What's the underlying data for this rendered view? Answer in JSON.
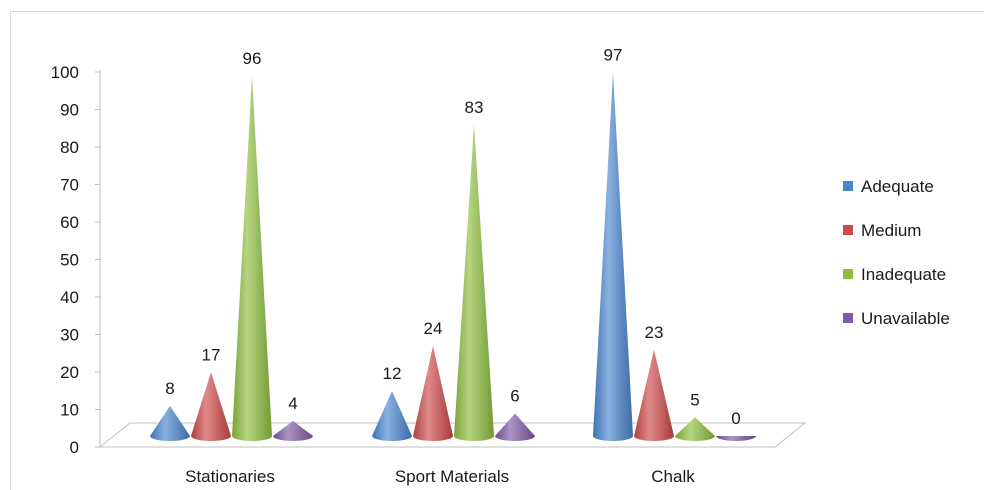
{
  "chart_data": {
    "type": "bar",
    "subtype": "3d-cone",
    "categories": [
      "Stationaries",
      "Sport Materials",
      "Chalk"
    ],
    "series": [
      {
        "name": "Adequate",
        "values": [
          8,
          12,
          97
        ],
        "color": "#4a86cf"
      },
      {
        "name": "Medium",
        "values": [
          17,
          24,
          23
        ],
        "color": "#cf4a4a"
      },
      {
        "name": "Inadequate",
        "values": [
          96,
          83,
          5
        ],
        "color": "#8fbf3f"
      },
      {
        "name": "Unavailable",
        "values": [
          4,
          6,
          0
        ],
        "color": "#7f5aa8"
      }
    ],
    "y_ticks": [
      "0",
      "10",
      "20",
      "30",
      "40",
      "50",
      "60",
      "70",
      "80",
      "90",
      "100"
    ],
    "ylim": [
      0,
      100
    ],
    "legend_position": "right",
    "grid": false,
    "title": "",
    "xlabel": "",
    "ylabel": ""
  }
}
